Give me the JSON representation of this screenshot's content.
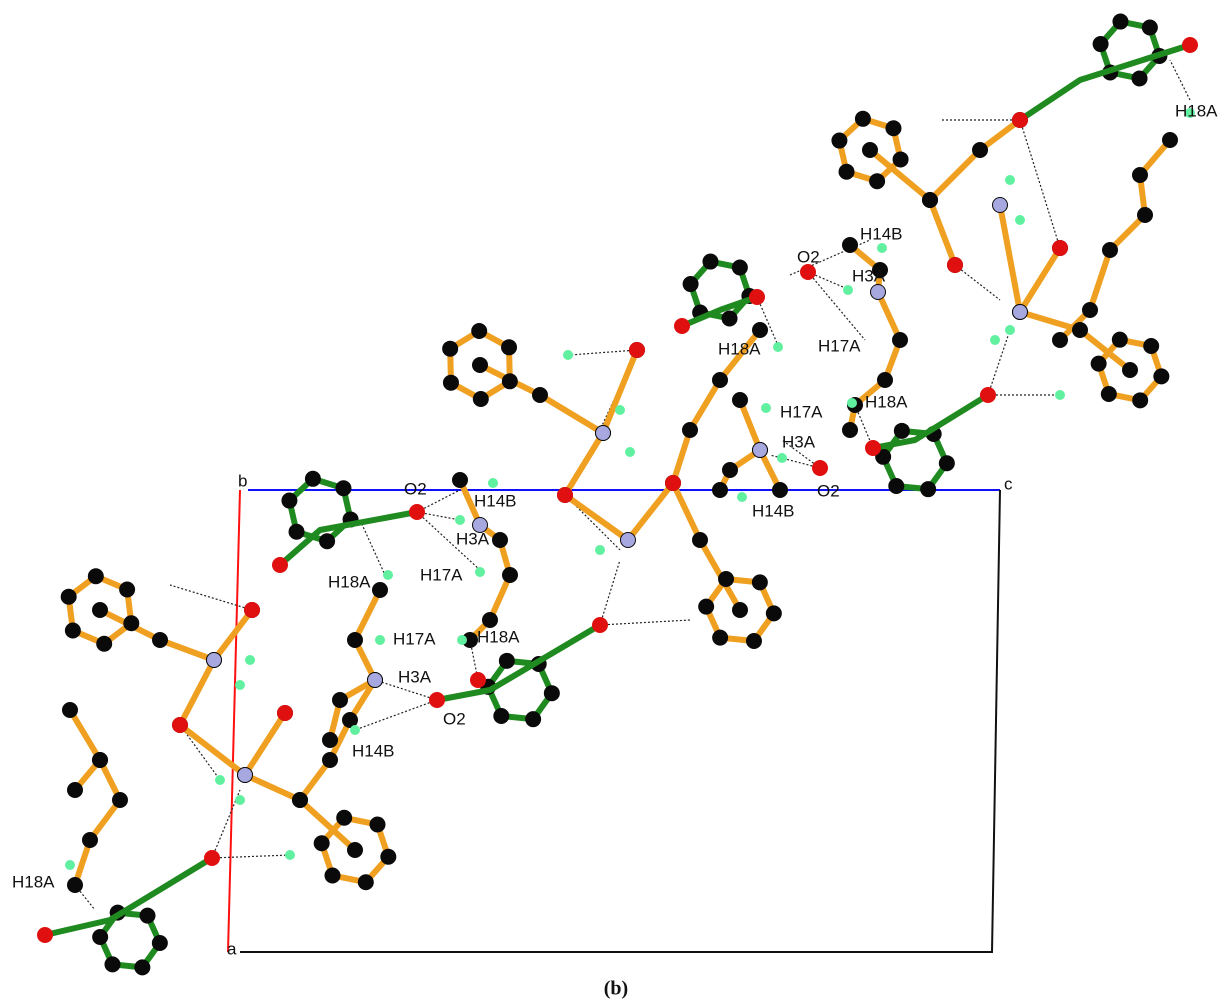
{
  "axes": {
    "a": "a",
    "b": "b",
    "c": "c"
  },
  "labels": [
    "H18A",
    "H14B",
    "O2",
    "H3A",
    "H18A",
    "H17A",
    "H17A",
    "H18A",
    "H3A",
    "O2",
    "H14B",
    "O2",
    "H14B",
    "H3A",
    "H17A",
    "H18A",
    "H17A",
    "H18A",
    "H3A",
    "O2",
    "H14B",
    "H18A"
  ],
  "caption": "(b)"
}
